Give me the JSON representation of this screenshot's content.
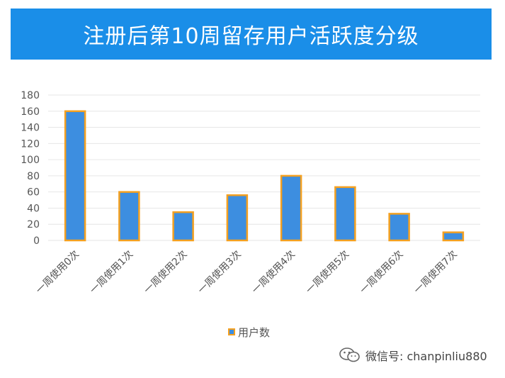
{
  "colors": {
    "banner": "#1a8ee8",
    "bar_fill": "#3d8ee0",
    "bar_border": "#f4a020",
    "gridline": "#e6e6e6",
    "axis_text": "#555555"
  },
  "chart_data": {
    "type": "bar",
    "title": "注册后第10周留存用户活跃度分级",
    "categories": [
      "一周使用0次",
      "一周使用1次",
      "一周使用2次",
      "一周使用3次",
      "一周使用4次",
      "一周使用5次",
      "一周使用6次",
      "一周使用7次"
    ],
    "series": [
      {
        "name": "用户数",
        "values": [
          160,
          60,
          35,
          56,
          80,
          66,
          33,
          10
        ]
      }
    ],
    "ylim": [
      0,
      180
    ],
    "yticks": [
      "0",
      "20",
      "40",
      "60",
      "80",
      "100",
      "120",
      "140",
      "160",
      "180"
    ],
    "grid": true,
    "legend_position": "bottom"
  },
  "watermark": {
    "icon": "wechat-icon",
    "text": "微信号: chanpinliu880"
  }
}
